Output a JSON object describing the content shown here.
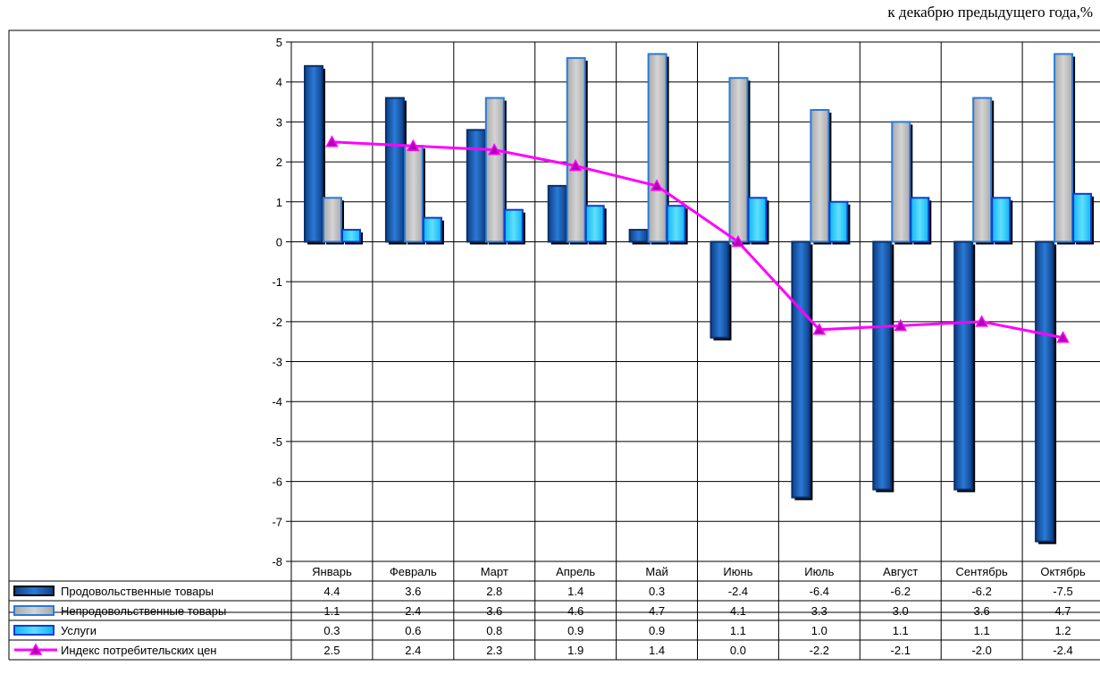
{
  "subtitle": "к декабрю предыдущего года,%",
  "chart_data": {
    "type": "bar",
    "categories": [
      "Январь",
      "Февраль",
      "Март",
      "Апрель",
      "Май",
      "Июнь",
      "Июль",
      "Август",
      "Сентябрь",
      "Октябрь"
    ],
    "ylim": [
      -8,
      5
    ],
    "yticks": [
      "5",
      "4",
      "3",
      "2",
      "1",
      "0",
      "-1",
      "-2",
      "-3",
      "-4",
      "-5",
      "-6",
      "-7",
      "-8"
    ],
    "grid": true,
    "legend": "table-bottom-left",
    "series": [
      {
        "name": "Продовольственные товары",
        "kind": "bar",
        "color": "#1f5fae",
        "values": [
          4.4,
          3.6,
          2.8,
          1.4,
          0.3,
          -2.4,
          -6.4,
          -6.2,
          -6.2,
          -7.5
        ],
        "labels": [
          "4.4",
          "3.6",
          "2.8",
          "1.4",
          "0.3",
          "-2.4",
          "-6.4",
          "-6.2",
          "-6.2",
          "-7.5"
        ]
      },
      {
        "name": "Непродовольственные товары",
        "kind": "bar",
        "color": "#c0c0c0",
        "values": [
          1.1,
          2.4,
          3.6,
          4.6,
          4.7,
          4.1,
          3.3,
          3.0,
          3.6,
          4.7
        ],
        "labels": [
          "1.1",
          "2.4",
          "3.6",
          "4.6",
          "4.7",
          "4.1",
          "3.3",
          "3.0",
          "3.6",
          "4.7"
        ]
      },
      {
        "name": "Услуги",
        "kind": "bar",
        "color": "#19c8f8",
        "values": [
          0.3,
          0.6,
          0.8,
          0.9,
          0.9,
          1.1,
          1.0,
          1.1,
          1.1,
          1.2
        ],
        "labels": [
          "0.3",
          "0.6",
          "0.8",
          "0.9",
          "0.9",
          "1.1",
          "1.0",
          "1.1",
          "1.1",
          "1.2"
        ]
      },
      {
        "name": "Индекс потребительских цен",
        "kind": "line",
        "color": "#ff00ff",
        "values": [
          2.5,
          2.4,
          2.3,
          1.9,
          1.4,
          0.0,
          -2.2,
          -2.1,
          -2.0,
          -2.4
        ],
        "labels": [
          "2.5",
          "2.4",
          "2.3",
          "1.9",
          "1.4",
          "0.0",
          "-2.2",
          "-2.1",
          "-2.0",
          "-2.4"
        ]
      }
    ]
  }
}
